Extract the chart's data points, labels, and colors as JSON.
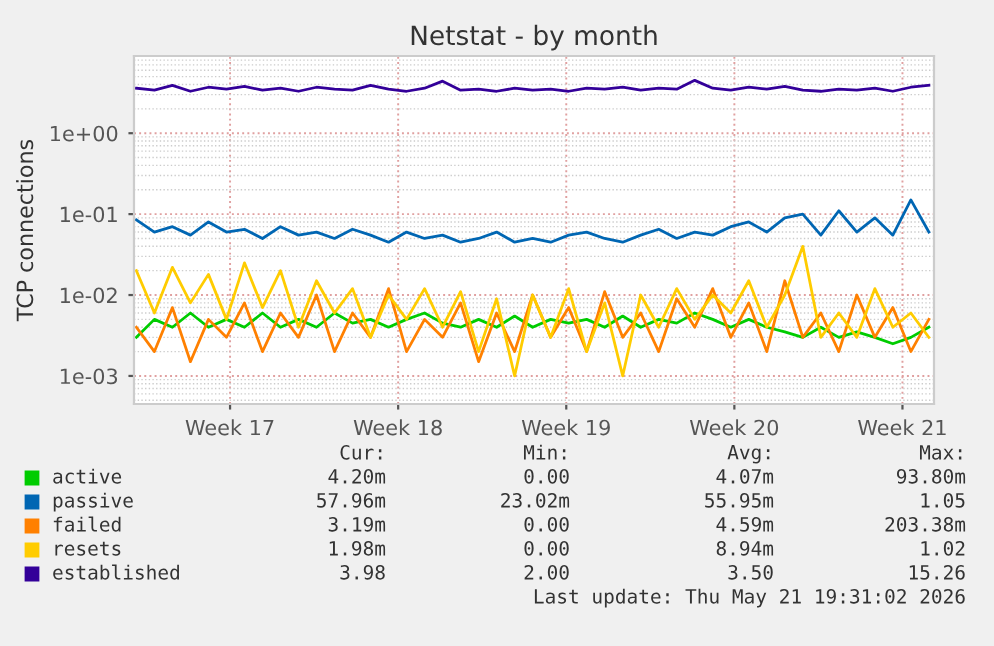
{
  "chart_data": {
    "type": "line",
    "title": "Netstat - by month",
    "ylabel": "TCP connections",
    "log": "y",
    "grid": true,
    "legend": "bottom",
    "marker": "none",
    "line_style": "solid",
    "x": [
      "2026-04-18T14:24",
      "2026-04-19T08:24",
      "2026-04-20T02:24",
      "2026-04-20T20:24",
      "2026-04-21T14:24",
      "2026-04-22T08:24",
      "2026-04-23T02:24",
      "2026-04-23T20:24",
      "2026-04-24T14:24",
      "2026-04-25T08:24",
      "2026-04-26T02:24",
      "2026-04-26T20:24",
      "2026-04-27T14:24",
      "2026-04-28T08:24",
      "2026-04-29T02:24",
      "2026-04-29T20:24",
      "2026-04-30T14:24",
      "2026-05-01T08:24",
      "2026-05-02T02:24",
      "2026-05-02T20:24",
      "2026-05-03T14:24",
      "2026-05-04T08:24",
      "2026-05-05T02:24",
      "2026-05-05T20:24",
      "2026-05-06T14:24",
      "2026-05-07T08:24",
      "2026-05-08T02:24",
      "2026-05-08T20:24",
      "2026-05-09T14:24",
      "2026-05-10T08:24",
      "2026-05-11T02:24",
      "2026-05-11T20:24",
      "2026-05-12T14:24",
      "2026-05-13T08:24",
      "2026-05-14T02:24",
      "2026-05-14T20:24",
      "2026-05-15T14:24",
      "2026-05-16T08:24",
      "2026-05-17T02:24",
      "2026-05-17T20:24",
      "2026-05-18T14:24",
      "2026-05-19T08:24",
      "2026-05-20T02:24",
      "2026-05-20T20:24",
      "2026-05-21T14:24"
    ],
    "xlim": [
      "2026-04-18T12:00",
      "2026-05-21T19:31"
    ],
    "xticks": [
      {
        "value": "2026-04-22T12:00",
        "label": "Week 17"
      },
      {
        "value": "2026-04-29T12:00",
        "label": "Week 18"
      },
      {
        "value": "2026-05-06T12:00",
        "label": "Week 19"
      },
      {
        "value": "2026-05-13T12:00",
        "label": "Week 20"
      },
      {
        "value": "2026-05-20T12:00",
        "label": "Week 21"
      }
    ],
    "ylim": [
      0.00045,
      9
    ],
    "yticks": [
      {
        "value": 0.001,
        "label": "1e-03"
      },
      {
        "value": 0.01,
        "label": "1e-02"
      },
      {
        "value": 0.1,
        "label": "1e-01"
      },
      {
        "value": 1,
        "label": "1e+00"
      }
    ],
    "series": [
      {
        "name": "active",
        "color": "#00cc00",
        "values": [
          0.003,
          0.005,
          0.004,
          0.006,
          0.004,
          0.005,
          0.004,
          0.006,
          0.004,
          0.005,
          0.004,
          0.006,
          0.0045,
          0.005,
          0.004,
          0.005,
          0.006,
          0.0045,
          0.004,
          0.005,
          0.004,
          0.0055,
          0.004,
          0.005,
          0.0045,
          0.005,
          0.004,
          0.0055,
          0.004,
          0.005,
          0.0045,
          0.006,
          0.005,
          0.004,
          0.005,
          0.004,
          0.0035,
          0.003,
          0.004,
          0.003,
          0.0035,
          0.003,
          0.0025,
          0.003,
          0.004
        ]
      },
      {
        "name": "passive",
        "color": "#0066b3",
        "values": [
          0.085,
          0.06,
          0.07,
          0.055,
          0.08,
          0.06,
          0.065,
          0.05,
          0.07,
          0.055,
          0.06,
          0.05,
          0.065,
          0.055,
          0.045,
          0.06,
          0.05,
          0.055,
          0.045,
          0.05,
          0.06,
          0.045,
          0.05,
          0.045,
          0.055,
          0.06,
          0.05,
          0.045,
          0.055,
          0.065,
          0.05,
          0.06,
          0.055,
          0.07,
          0.08,
          0.06,
          0.09,
          0.1,
          0.055,
          0.11,
          0.06,
          0.09,
          0.055,
          0.15,
          0.06
        ]
      },
      {
        "name": "failed",
        "color": "#ff8000",
        "values": [
          0.004,
          0.002,
          0.007,
          0.0015,
          0.005,
          0.003,
          0.008,
          0.002,
          0.006,
          0.003,
          0.01,
          0.002,
          0.006,
          0.003,
          0.012,
          0.002,
          0.005,
          0.003,
          0.008,
          0.0015,
          0.006,
          0.002,
          0.01,
          0.003,
          0.007,
          0.002,
          0.011,
          0.003,
          0.006,
          0.002,
          0.009,
          0.004,
          0.012,
          0.003,
          0.008,
          0.002,
          0.015,
          0.003,
          0.006,
          0.002,
          0.01,
          0.003,
          0.007,
          0.002,
          0.005
        ]
      },
      {
        "name": "resets",
        "color": "#ffcc00",
        "values": [
          0.02,
          0.006,
          0.022,
          0.008,
          0.018,
          0.005,
          0.025,
          0.007,
          0.02,
          0.004,
          0.015,
          0.006,
          0.012,
          0.003,
          0.01,
          0.005,
          0.012,
          0.004,
          0.011,
          0.002,
          0.009,
          0.001,
          0.01,
          0.003,
          0.012,
          0.002,
          0.008,
          0.001,
          0.01,
          0.004,
          0.012,
          0.005,
          0.01,
          0.006,
          0.015,
          0.004,
          0.01,
          0.04,
          0.003,
          0.006,
          0.003,
          0.012,
          0.004,
          0.006,
          0.003
        ]
      },
      {
        "name": "established",
        "color": "#330099",
        "values": [
          3.6,
          3.4,
          3.9,
          3.3,
          3.7,
          3.5,
          3.8,
          3.4,
          3.6,
          3.3,
          3.7,
          3.5,
          3.4,
          3.9,
          3.5,
          3.3,
          3.6,
          4.4,
          3.4,
          3.5,
          3.3,
          3.6,
          3.4,
          3.5,
          3.3,
          3.6,
          3.5,
          3.7,
          3.4,
          3.6,
          3.5,
          4.5,
          3.6,
          3.4,
          3.7,
          3.5,
          3.8,
          3.4,
          3.3,
          3.5,
          3.4,
          3.6,
          3.3,
          3.7,
          3.9
        ]
      }
    ],
    "annotations": [
      "Cur:",
      "Min:",
      "Avg:",
      "Max:",
      "4.20m",
      "0.00",
      "4.07m",
      "93.80m",
      "57.96m",
      "23.02m",
      "55.95m",
      "1.05",
      "3.19m",
      "0.00",
      "4.59m",
      "203.38m",
      "1.98m",
      "0.00",
      "8.94m",
      "1.02",
      "3.98",
      "2.00",
      "3.50",
      "15.26",
      "Last update: Thu May 21 19:31:02 2026"
    ]
  }
}
